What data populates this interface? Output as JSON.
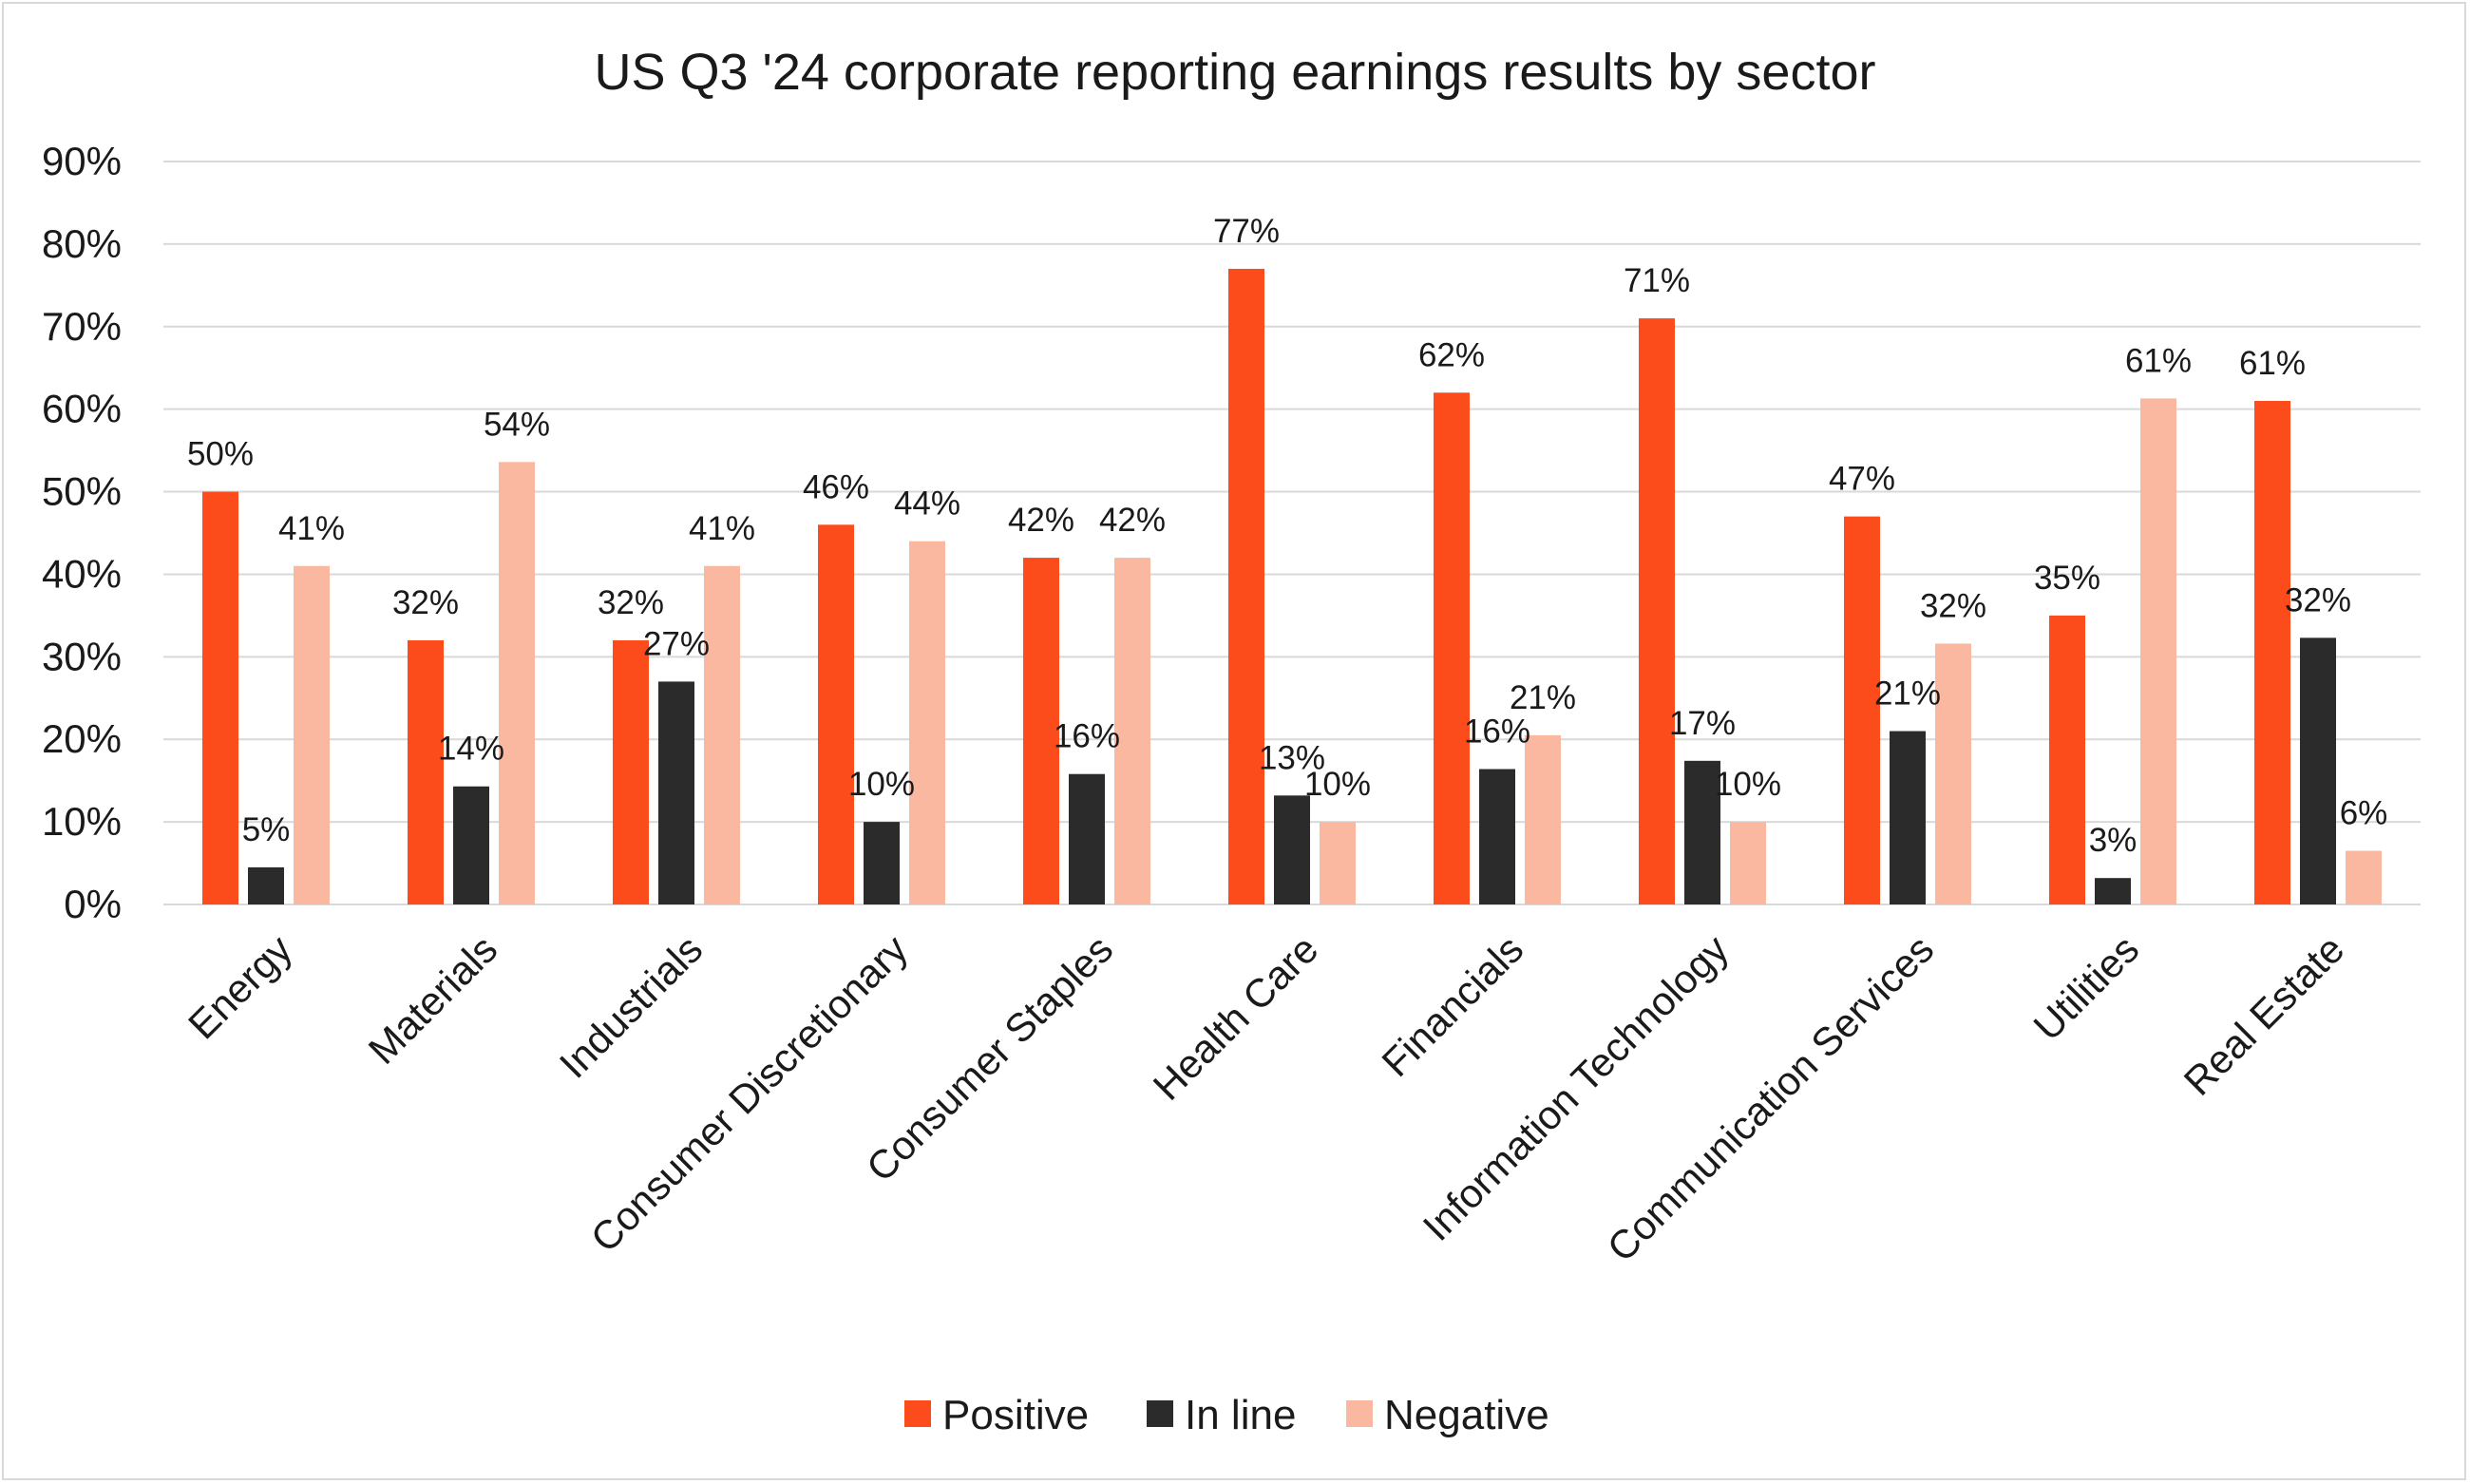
{
  "chart_data": {
    "type": "bar",
    "title": "US Q3 '24 corporate reporting earnings results by sector",
    "categories": [
      "Energy",
      "Materials",
      "Industrials",
      "Consumer Discretionary",
      "Consumer Staples",
      "Health Care",
      "Financials",
      "Information Technology",
      "Communication Services",
      "Utilities",
      "Real Estate"
    ],
    "series": [
      {
        "name": "Positive",
        "color": "#fc4c1c",
        "values": [
          50,
          32,
          32,
          46,
          42,
          77,
          62,
          71,
          47,
          35,
          61
        ],
        "labels": [
          "50%",
          "32%",
          "32%",
          "46%",
          "42%",
          "77%",
          "62%",
          "71%",
          "47%",
          "35%",
          "61%"
        ]
      },
      {
        "name": "In line",
        "color": "#2b2b2b",
        "values": [
          4.5,
          14.3,
          27,
          10,
          15.8,
          13.2,
          16.4,
          17.4,
          21,
          3.2,
          32.3
        ],
        "labels": [
          "5%",
          "14%",
          "27%",
          "10%",
          "16%",
          "13%",
          "16%",
          "17%",
          "21%",
          "3%",
          "32%"
        ]
      },
      {
        "name": "Negative",
        "color": "#fbb8a1",
        "values": [
          41,
          53.6,
          41,
          44,
          42,
          10,
          20.5,
          10,
          31.6,
          61.3,
          6.5
        ],
        "labels": [
          "41%",
          "54%",
          "41%",
          "44%",
          "42%",
          "10%",
          "21%",
          "10%",
          "32%",
          "61%",
          "6%"
        ]
      }
    ],
    "yticks": [
      "0%",
      "10%",
      "20%",
      "30%",
      "40%",
      "50%",
      "60%",
      "70%",
      "80%",
      "90%"
    ],
    "ylim": [
      0,
      90
    ],
    "grid": true,
    "legend_position": "bottom",
    "xlabel": "",
    "ylabel": ""
  }
}
